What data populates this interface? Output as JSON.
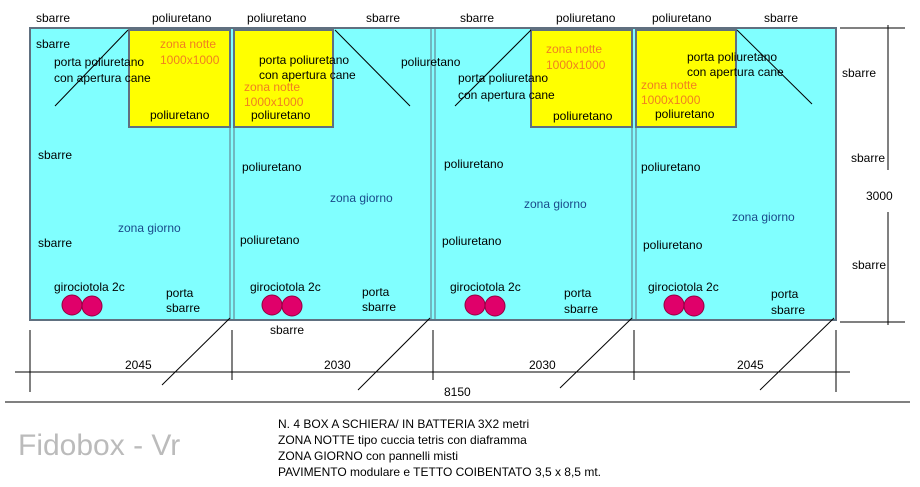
{
  "top_labels": [
    "sbarre",
    "poliuretano",
    "poliuretano",
    "sbarre",
    "sbarre",
    "poliuretano",
    "poliuretano",
    "sbarre"
  ],
  "boxes": [
    {
      "texts": [
        "sbarre",
        "porta poliuretano",
        "con apertura cane",
        "zona notte",
        "1000x1000",
        "poliuretano",
        "sbarre",
        "zona giorno",
        "sbarre",
        "girociotola 2c",
        "porta",
        "sbarre"
      ]
    },
    {
      "texts": [
        "porta poliuretano",
        "con apertura cane",
        "zona notte",
        "1000x1000",
        "poliuretano",
        "poliuretano",
        "poliuretano",
        "zona giorno",
        "poliuretano",
        "girociotola 2c",
        "porta",
        "sbarre"
      ]
    },
    {
      "texts": [
        "zona notte",
        "1000x1000",
        "porta poliuretano",
        "con apertura cane",
        "poliuretano",
        "poliuretano",
        "zona giorno",
        "poliuretano",
        "girociotola 2c",
        "porta",
        "sbarre"
      ]
    },
    {
      "texts": [
        "porta poliuretano",
        "con apertura cane",
        "zona notte",
        "1000x1000",
        "poliuretano",
        "poliuretano",
        "zona giorno",
        "poliuretano",
        "girociotola 2c",
        "porta",
        "sbarre"
      ]
    }
  ],
  "bottom_label": "sbarre",
  "right_labels": [
    "sbarre",
    "sbarre",
    "sbarre"
  ],
  "dimensions": {
    "widths": [
      "2045",
      "2030",
      "2030",
      "2045"
    ],
    "total": "8150",
    "height": "3000"
  },
  "brand": "Fidobox - Vr",
  "notes": [
    "N. 4 BOX A SCHIERA/ IN BATTERIA 3X2 metri",
    "ZONA NOTTE tipo cuccia tetris con diaframma",
    "ZONA GIORNO con pannelli misti",
    "PAVIMENTO modulare e TETTO COIBENTATO 3,5 x 8,5 mt."
  ]
}
